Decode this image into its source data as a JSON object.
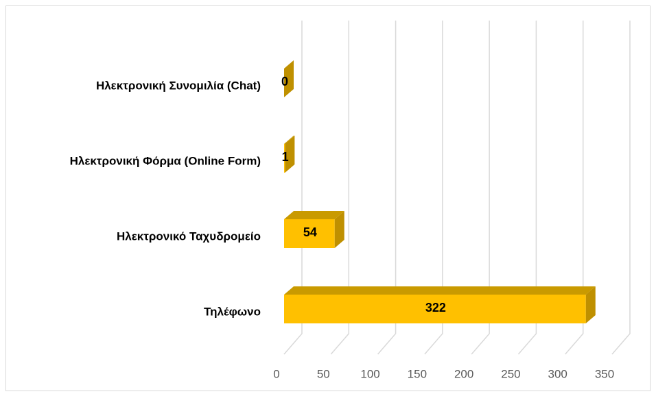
{
  "chart_data": {
    "type": "bar3d_horizontal",
    "categories": [
      "Τηλέφωνο",
      "Ηλεκτρονικό Ταχυδρομείο",
      "Ηλεκτρονική Φόρμα (Online Form)",
      "Ηλεκτρονική Συνομιλία (Chat)"
    ],
    "values": [
      322,
      54,
      1,
      0
    ],
    "color": "#ffc000",
    "xlim": [
      0,
      350
    ],
    "xticks": [
      0,
      50,
      100,
      150,
      200,
      250,
      300,
      350
    ],
    "grid": true
  }
}
